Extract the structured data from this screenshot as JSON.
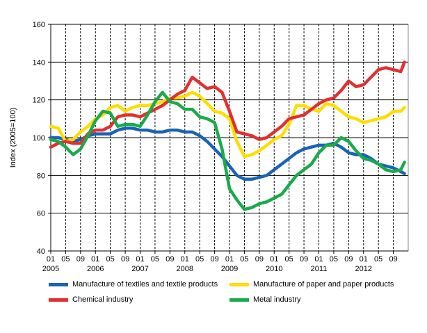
{
  "chart_data": {
    "type": "line",
    "title": "",
    "xlabel": "",
    "ylabel": "Index (2005=100)",
    "ylim": [
      40,
      160
    ],
    "yticks": [
      40,
      60,
      80,
      100,
      120,
      140,
      160
    ],
    "xrange": [
      "2005-01",
      "2012-12"
    ],
    "x_tick_months": [
      "01",
      "05",
      "09"
    ],
    "x_years": [
      "2005",
      "2006",
      "2007",
      "2008",
      "2009",
      "2010",
      "2011",
      "2012"
    ],
    "grid": "horizontal solid at y ticks, vertical dashed at each tick month",
    "legend_placement": "bottom",
    "x": [
      "2005-01",
      "2005-03",
      "2005-05",
      "2005-07",
      "2005-09",
      "2005-11",
      "2006-01",
      "2006-03",
      "2006-05",
      "2006-07",
      "2006-09",
      "2006-11",
      "2007-01",
      "2007-03",
      "2007-05",
      "2007-07",
      "2007-09",
      "2007-11",
      "2008-01",
      "2008-03",
      "2008-05",
      "2008-07",
      "2008-09",
      "2008-11",
      "2009-01",
      "2009-03",
      "2009-05",
      "2009-07",
      "2009-09",
      "2009-11",
      "2010-01",
      "2010-03",
      "2010-05",
      "2010-07",
      "2010-09",
      "2010-11",
      "2011-01",
      "2011-03",
      "2011-05",
      "2011-07",
      "2011-09",
      "2011-11",
      "2012-01",
      "2012-03",
      "2012-05",
      "2012-07",
      "2012-09",
      "2012-11",
      "2012-12"
    ],
    "series": [
      {
        "name": "Manufacture of textiles and textile products",
        "color": "#1a63b5",
        "values": [
          100,
          100,
          99,
          98,
          99,
          101,
          102,
          102,
          102,
          104,
          105,
          105,
          104,
          104,
          103,
          103,
          104,
          104,
          103,
          103,
          101,
          98,
          94,
          90,
          85,
          80,
          78,
          78,
          79,
          80,
          83,
          86,
          89,
          92,
          94,
          95,
          96,
          96,
          97,
          95,
          92,
          91,
          91,
          89,
          86,
          85,
          84,
          82,
          81
        ]
      },
      {
        "name": "Manufacture of paper and paper products",
        "color": "#ffdd00",
        "values": [
          106,
          105,
          98,
          99,
          103,
          106,
          110,
          112,
          116,
          117,
          114,
          116,
          117,
          117,
          118,
          119,
          121,
          121,
          122,
          124,
          122,
          118,
          114,
          113,
          110,
          98,
          90,
          91,
          93,
          96,
          99,
          101,
          107,
          117,
          117,
          115,
          114,
          118,
          117,
          114,
          111,
          110,
          108,
          109,
          110,
          111,
          114,
          114,
          116
        ]
      },
      {
        "name": "Chemical industry",
        "color": "#e03030",
        "values": [
          95,
          97,
          98,
          97,
          97,
          102,
          104,
          104,
          106,
          111,
          112,
          112,
          111,
          113,
          115,
          117,
          120,
          123,
          125,
          132,
          129,
          126,
          127,
          124,
          114,
          103,
          102,
          101,
          99,
          100,
          103,
          106,
          110,
          111,
          112,
          115,
          118,
          120,
          121,
          125,
          130,
          127,
          128,
          132,
          136,
          137,
          136,
          135,
          140
        ]
      },
      {
        "name": "Metal industry",
        "color": "#1aaa4a",
        "values": [
          99,
          98,
          95,
          91,
          94,
          101,
          109,
          114,
          113,
          106,
          107,
          107,
          106,
          112,
          119,
          124,
          119,
          118,
          115,
          115,
          111,
          110,
          108,
          94,
          73,
          67,
          62,
          63,
          65,
          66,
          68,
          70,
          75,
          80,
          83,
          86,
          92,
          96,
          96,
          100,
          98,
          93,
          89,
          88,
          86,
          83,
          82,
          83,
          87
        ]
      }
    ]
  }
}
